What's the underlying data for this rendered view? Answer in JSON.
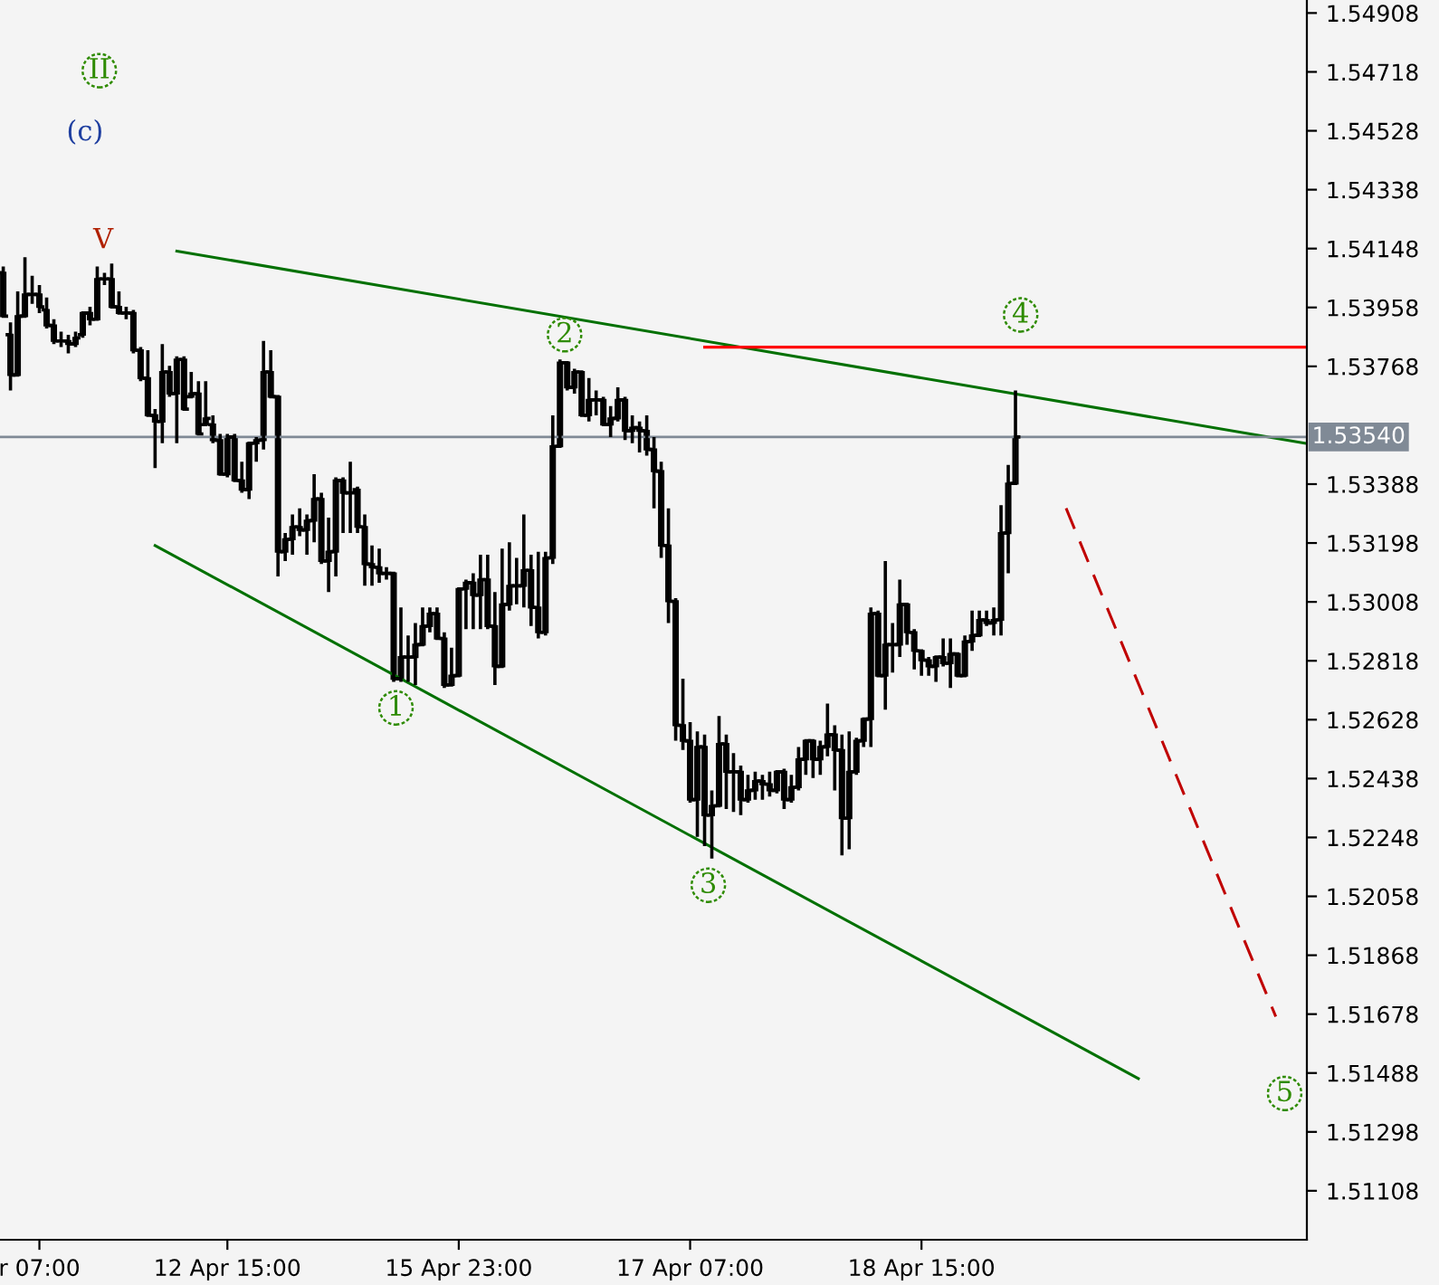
{
  "chart_data": {
    "type": "candlestick",
    "color": "#000000",
    "categories": [
      null,
      null,
      null,
      null,
      null,
      "r 07:00",
      null,
      null,
      null,
      null,
      null,
      null,
      null,
      null,
      null,
      null,
      null,
      null,
      null,
      null,
      null,
      null,
      null,
      null,
      null,
      null,
      null,
      null,
      null,
      null,
      null,
      "12 Apr 15:00",
      null,
      null,
      null,
      null,
      null,
      null,
      null,
      null,
      null,
      null,
      null,
      null,
      null,
      null,
      null,
      null,
      null,
      null,
      null,
      null,
      null,
      null,
      null,
      null,
      null,
      null,
      null,
      null,
      null,
      null,
      null,
      "15 Apr 23:00",
      null,
      null,
      null,
      null,
      null,
      null,
      null,
      null,
      null,
      null,
      null,
      null,
      null,
      null,
      null,
      null,
      null,
      null,
      null,
      null,
      null,
      null,
      null,
      null,
      null,
      null,
      null,
      null,
      null,
      null,
      null,
      "17 Apr 07:00",
      null,
      null,
      null,
      null,
      null,
      null,
      null,
      null,
      null,
      null,
      null,
      null,
      null,
      null,
      null,
      null,
      null,
      null,
      null,
      null,
      null,
      null,
      null,
      null,
      null,
      null,
      null,
      null,
      null,
      null,
      null,
      "18 Apr 15:00",
      null,
      null,
      null,
      null,
      null,
      null,
      null,
      null,
      null,
      null,
      null,
      null,
      null,
      null,
      null,
      null,
      null,
      null,
      null,
      null,
      null,
      null,
      null,
      null,
      null,
      null,
      null,
      null,
      null,
      null,
      null,
      null,
      null,
      null,
      null,
      null,
      null,
      null,
      null,
      null,
      null,
      null,
      null,
      null,
      null,
      null,
      null,
      null,
      null,
      null,
      null,
      null,
      null
    ],
    "ohlc": [
      [
        1.5407,
        1.5409,
        1.5393,
        1.5393
      ],
      [
        1.5387,
        1.5391,
        1.5369,
        1.5374
      ],
      [
        1.5374,
        1.5401,
        1.5374,
        1.5393
      ],
      [
        1.5393,
        1.5412,
        1.5393,
        1.54
      ],
      [
        1.54,
        1.5406,
        1.5397,
        1.54
      ],
      [
        1.54,
        1.5403,
        1.5394,
        1.5396
      ],
      [
        1.5395,
        1.5399,
        1.5389,
        1.539
      ],
      [
        1.539,
        1.5392,
        1.5384,
        1.5385
      ],
      [
        1.5385,
        1.5388,
        1.5383,
        1.5385
      ],
      [
        1.5385,
        1.5387,
        1.5381,
        1.5384
      ],
      [
        1.5384,
        1.5388,
        1.5383,
        1.5386
      ],
      [
        1.5387,
        1.5394,
        1.5386,
        1.5394
      ],
      [
        1.5394,
        1.5396,
        1.539,
        1.5392
      ],
      [
        1.5392,
        1.5409,
        1.5392,
        1.5405
      ],
      [
        1.5405,
        1.5407,
        1.5403,
        1.5405
      ],
      [
        1.5405,
        1.541,
        1.5396,
        1.5396
      ],
      [
        1.5396,
        1.5401,
        1.5394,
        1.5394
      ],
      [
        1.5394,
        1.5396,
        1.5392,
        1.5394
      ],
      [
        1.5394,
        1.5395,
        1.5381,
        1.5382
      ],
      [
        1.5382,
        1.5383,
        1.5372,
        1.5373
      ],
      [
        1.5373,
        1.5382,
        1.5361,
        1.5361
      ],
      [
        1.5361,
        1.5363,
        1.5344,
        1.5359
      ],
      [
        1.5359,
        1.5384,
        1.5352,
        1.5375
      ],
      [
        1.5375,
        1.5377,
        1.5367,
        1.5368
      ],
      [
        1.5368,
        1.538,
        1.5352,
        1.5379
      ],
      [
        1.5379,
        1.538,
        1.5363,
        1.5363
      ],
      [
        1.5367,
        1.5375,
        1.5367,
        1.5368
      ],
      [
        1.5368,
        1.5372,
        1.5355,
        1.5355
      ],
      [
        1.5358,
        1.5372,
        1.5358,
        1.536
      ],
      [
        1.5358,
        1.5361,
        1.5352,
        1.5353
      ],
      [
        1.5353,
        1.5355,
        1.5342,
        1.5342
      ],
      [
        1.5342,
        1.5355,
        1.5341,
        1.5354
      ],
      [
        1.5354,
        1.5355,
        1.534,
        1.534
      ],
      [
        1.534,
        1.5346,
        1.5336,
        1.5337
      ],
      [
        1.5337,
        1.5352,
        1.5334,
        1.5352
      ],
      [
        1.5352,
        1.5354,
        1.5346,
        1.5353
      ],
      [
        1.5353,
        1.5385,
        1.535,
        1.5375
      ],
      [
        1.5375,
        1.5382,
        1.5367,
        1.5367
      ],
      [
        1.5367,
        1.5367,
        1.5309,
        1.5317
      ],
      [
        1.5317,
        1.5323,
        1.5314,
        1.5321
      ],
      [
        1.5321,
        1.5329,
        1.5316,
        1.5325
      ],
      [
        1.5325,
        1.5331,
        1.5322,
        1.5324
      ],
      [
        1.5324,
        1.5329,
        1.5316,
        1.5327
      ],
      [
        1.5327,
        1.5342,
        1.532,
        1.5334
      ],
      [
        1.5334,
        1.5336,
        1.5313,
        1.5314
      ],
      [
        1.5314,
        1.5328,
        1.5304,
        1.5317
      ],
      [
        1.5317,
        1.5341,
        1.5309,
        1.534
      ],
      [
        1.534,
        1.5341,
        1.5323,
        1.5336
      ],
      [
        1.5336,
        1.5346,
        1.5323,
        1.5336
      ],
      [
        1.5337,
        1.5338,
        1.5323,
        1.5325
      ],
      [
        1.5325,
        1.5329,
        1.5306,
        1.5313
      ],
      [
        1.5313,
        1.5319,
        1.5306,
        1.5312
      ],
      [
        1.5312,
        1.5318,
        1.5307,
        1.531
      ],
      [
        1.531,
        1.5312,
        1.5308,
        1.531
      ],
      [
        1.531,
        1.531,
        1.5275,
        1.5276
      ],
      [
        1.5276,
        1.5299,
        1.5275,
        1.5283
      ],
      [
        1.5283,
        1.529,
        1.5275,
        1.5283
      ],
      [
        1.5283,
        1.5294,
        1.5274,
        1.5287
      ],
      [
        1.5287,
        1.5299,
        1.5287,
        1.5293
      ],
      [
        1.5293,
        1.5299,
        1.5291,
        1.5297
      ],
      [
        1.5297,
        1.5299,
        1.5289,
        1.5289
      ],
      [
        1.5289,
        1.5291,
        1.5273,
        1.5274
      ],
      [
        1.5274,
        1.5286,
        1.5274,
        1.5277
      ],
      [
        1.5277,
        1.5305,
        1.5277,
        1.5305
      ],
      [
        1.5305,
        1.5308,
        1.5292,
        1.5307
      ],
      [
        1.5307,
        1.531,
        1.5292,
        1.5303
      ],
      [
        1.5303,
        1.5316,
        1.5292,
        1.5308
      ],
      [
        1.5308,
        1.5316,
        1.5292,
        1.5293
      ],
      [
        1.5293,
        1.5304,
        1.5274,
        1.528
      ],
      [
        1.528,
        1.5318,
        1.528,
        1.53
      ],
      [
        1.53,
        1.532,
        1.5298,
        1.5306
      ],
      [
        1.5306,
        1.5315,
        1.53,
        1.5306
      ],
      [
        1.5306,
        1.5329,
        1.5299,
        1.5311
      ],
      [
        1.5311,
        1.5316,
        1.5293,
        1.5299
      ],
      [
        1.5299,
        1.5317,
        1.5289,
        1.5291
      ],
      [
        1.5291,
        1.5317,
        1.529,
        1.5315
      ],
      [
        1.5315,
        1.5361,
        1.5313,
        1.5351
      ],
      [
        1.5351,
        1.5379,
        1.5351,
        1.5378
      ],
      [
        1.5378,
        1.5378,
        1.5369,
        1.537
      ],
      [
        1.537,
        1.5376,
        1.5368,
        1.5375
      ],
      [
        1.5375,
        1.5375,
        1.5361,
        1.5361
      ],
      [
        1.5361,
        1.5373,
        1.5359,
        1.5366
      ],
      [
        1.5366,
        1.5369,
        1.5361,
        1.5366
      ],
      [
        1.5366,
        1.5367,
        1.5358,
        1.5358
      ],
      [
        1.5358,
        1.5364,
        1.5354,
        1.536
      ],
      [
        1.536,
        1.537,
        1.5359,
        1.5366
      ],
      [
        1.5366,
        1.5367,
        1.5353,
        1.5356
      ],
      [
        1.5356,
        1.5361,
        1.5352,
        1.5357
      ],
      [
        1.5357,
        1.5359,
        1.5349,
        1.5356
      ],
      [
        1.5356,
        1.5361,
        1.5348,
        1.535
      ],
      [
        1.535,
        1.5354,
        1.5331,
        1.5343
      ],
      [
        1.5343,
        1.5346,
        1.5315,
        1.5319
      ],
      [
        1.5319,
        1.5331,
        1.5294,
        1.5301
      ],
      [
        1.5301,
        1.5302,
        1.5256,
        1.5261
      ],
      [
        1.5261,
        1.5276,
        1.5253,
        1.5256
      ],
      [
        1.5256,
        1.5262,
        1.5236,
        1.5237
      ],
      [
        1.5237,
        1.5259,
        1.5225,
        1.5254
      ],
      [
        1.5254,
        1.5258,
        1.5222,
        1.5232
      ],
      [
        1.5232,
        1.524,
        1.5218,
        1.5235
      ],
      [
        1.5235,
        1.5264,
        1.5235,
        1.5255
      ],
      [
        1.5255,
        1.5258,
        1.5234,
        1.5246
      ],
      [
        1.5246,
        1.5252,
        1.5233,
        1.5246
      ],
      [
        1.5246,
        1.5248,
        1.5232,
        1.5237
      ],
      [
        1.5237,
        1.5245,
        1.5236,
        1.524
      ],
      [
        1.524,
        1.5246,
        1.5237,
        1.5243
      ],
      [
        1.5243,
        1.5245,
        1.5237,
        1.5242
      ],
      [
        1.5242,
        1.5246,
        1.5238,
        1.524
      ],
      [
        1.524,
        1.5246,
        1.5239,
        1.5246
      ],
      [
        1.5246,
        1.5247,
        1.5234,
        1.5237
      ],
      [
        1.5237,
        1.5245,
        1.5236,
        1.5241
      ],
      [
        1.5241,
        1.5254,
        1.524,
        1.525
      ],
      [
        1.525,
        1.5256,
        1.5245,
        1.5256
      ],
      [
        1.5256,
        1.5256,
        1.5244,
        1.525
      ],
      [
        1.525,
        1.5256,
        1.5245,
        1.5254
      ],
      [
        1.5254,
        1.5268,
        1.5251,
        1.5258
      ],
      [
        1.5258,
        1.5261,
        1.524,
        1.5253
      ],
      [
        1.5253,
        1.5258,
        1.5219,
        1.5231
      ],
      [
        1.5231,
        1.5259,
        1.5221,
        1.5246
      ],
      [
        1.5246,
        1.5257,
        1.5245,
        1.5256
      ],
      [
        1.5256,
        1.5263,
        1.5254,
        1.5263
      ],
      [
        1.5263,
        1.5299,
        1.5254,
        1.5297
      ],
      [
        1.5297,
        1.5298,
        1.5277,
        1.5277
      ],
      [
        1.5277,
        1.5314,
        1.5266,
        1.5287
      ],
      [
        1.5287,
        1.5294,
        1.5278,
        1.5287
      ],
      [
        1.5287,
        1.5308,
        1.5283,
        1.53
      ],
      [
        1.53,
        1.53,
        1.5287,
        1.5291
      ],
      [
        1.5291,
        1.5292,
        1.5279,
        1.5285
      ],
      [
        1.5285,
        1.5285,
        1.5277,
        1.5282
      ],
      [
        1.5282,
        1.5283,
        1.5277,
        1.528
      ],
      [
        1.528,
        1.5283,
        1.5275,
        1.5283
      ],
      [
        1.5283,
        1.5289,
        1.528,
        1.5281
      ],
      [
        1.5281,
        1.5289,
        1.5273,
        1.5284
      ],
      [
        1.5284,
        1.5284,
        1.5277,
        1.5277
      ],
      [
        1.5277,
        1.529,
        1.5277,
        1.5288
      ],
      [
        1.5288,
        1.5298,
        1.5285,
        1.529
      ],
      [
        1.529,
        1.5298,
        1.529,
        1.5295
      ],
      [
        1.5295,
        1.5298,
        1.5293,
        1.5294
      ],
      [
        1.5294,
        1.5299,
        1.529,
        1.5295
      ],
      [
        1.5295,
        1.5332,
        1.529,
        1.5323
      ],
      [
        1.5323,
        1.5345,
        1.531,
        1.5339
      ],
      [
        1.5339,
        1.5369,
        1.5339,
        1.5354
      ],
      null,
      null,
      null,
      null,
      null,
      null,
      null,
      null,
      null,
      null,
      null,
      null,
      null,
      null,
      null,
      null,
      null,
      null,
      null,
      null,
      null,
      null,
      null,
      null,
      null,
      null,
      null,
      null,
      null,
      null,
      null,
      null,
      null,
      null,
      null,
      null,
      null,
      null,
      null,
      null
    ],
    "series": [
      {
        "type": "line",
        "color": "#007000",
        "values": [
          null,
          null,
          null,
          null,
          null,
          null,
          null,
          null,
          null,
          null,
          null,
          null,
          null,
          null,
          null,
          null,
          null,
          null,
          null,
          null,
          null,
          null,
          null,
          null,
          1.5414,
          null,
          null,
          null,
          null,
          null,
          null,
          null,
          null,
          null,
          null,
          null,
          null,
          null,
          null,
          null,
          null,
          null,
          null,
          null,
          null,
          null,
          null,
          null,
          null,
          null,
          null,
          null,
          null,
          null,
          null,
          null,
          null,
          null,
          null,
          null,
          null,
          null,
          null,
          null,
          null,
          null,
          null,
          null,
          null,
          null,
          null,
          null,
          null,
          null,
          null,
          null,
          null,
          null,
          null,
          null,
          null,
          null,
          null,
          null,
          null,
          null,
          null,
          null,
          null,
          null,
          null,
          null,
          null,
          null,
          null,
          null,
          null,
          null,
          null,
          null,
          null,
          null,
          null,
          null,
          null,
          null,
          null,
          null,
          null,
          null,
          null,
          null,
          null,
          null,
          null,
          null,
          null,
          null,
          null,
          null,
          null,
          null,
          null,
          null,
          null,
          null,
          null,
          null,
          null,
          null,
          null,
          null,
          null,
          null,
          null,
          null,
          null,
          null,
          null,
          null,
          null,
          null,
          null,
          null,
          null,
          null,
          null,
          null,
          null,
          null,
          null,
          null,
          null,
          null,
          null,
          null,
          null,
          null,
          null,
          null,
          null,
          null,
          null,
          null,
          null,
          null,
          null,
          null,
          null,
          null,
          null,
          null,
          null,
          null,
          null,
          null,
          null,
          null,
          null,
          null,
          1.5352
        ]
      },
      {
        "type": "line",
        "color": "#007000",
        "values": [
          null,
          null,
          null,
          null,
          null,
          null,
          null,
          null,
          null,
          null,
          null,
          null,
          null,
          null,
          null,
          null,
          null,
          null,
          null,
          null,
          null,
          1.5319,
          null,
          null,
          null,
          null,
          null,
          null,
          null,
          null,
          null,
          null,
          null,
          null,
          null,
          null,
          null,
          null,
          null,
          null,
          null,
          null,
          null,
          null,
          null,
          null,
          null,
          null,
          null,
          null,
          null,
          null,
          null,
          null,
          null,
          null,
          null,
          null,
          null,
          null,
          null,
          null,
          null,
          null,
          null,
          null,
          null,
          null,
          null,
          null,
          null,
          null,
          null,
          null,
          null,
          null,
          null,
          null,
          null,
          null,
          null,
          null,
          null,
          null,
          null,
          null,
          null,
          null,
          null,
          null,
          null,
          null,
          null,
          null,
          null,
          null,
          null,
          null,
          null,
          null,
          null,
          null,
          null,
          null,
          null,
          null,
          null,
          null,
          null,
          null,
          null,
          null,
          null,
          null,
          null,
          null,
          null,
          null,
          null,
          null,
          null,
          null,
          null,
          null,
          null,
          null,
          null,
          null,
          null,
          null,
          null,
          null,
          null,
          null,
          null,
          null,
          null,
          null,
          null,
          null,
          null,
          null,
          null,
          null,
          null,
          null,
          null,
          null,
          null,
          null,
          null,
          null,
          null,
          null,
          null,
          null,
          null,
          1.5147,
          null,
          null,
          null,
          null,
          null,
          null,
          null,
          null,
          null,
          null,
          null,
          null,
          null,
          null,
          null,
          null,
          null,
          null,
          null,
          null,
          null,
          null,
          null
        ]
      },
      {
        "type": "line",
        "color": "#ff0000",
        "values": [
          null,
          null,
          null,
          null,
          null,
          null,
          null,
          null,
          null,
          null,
          null,
          null,
          null,
          null,
          null,
          null,
          null,
          null,
          null,
          null,
          null,
          null,
          null,
          null,
          null,
          null,
          null,
          null,
          null,
          null,
          null,
          null,
          null,
          null,
          null,
          null,
          null,
          null,
          null,
          null,
          null,
          null,
          null,
          null,
          null,
          null,
          null,
          null,
          null,
          null,
          null,
          null,
          null,
          null,
          null,
          null,
          null,
          null,
          null,
          null,
          null,
          null,
          null,
          null,
          null,
          null,
          null,
          null,
          null,
          null,
          null,
          null,
          null,
          null,
          null,
          null,
          null,
          null,
          null,
          null,
          null,
          null,
          null,
          null,
          null,
          null,
          null,
          null,
          null,
          null,
          null,
          null,
          null,
          null,
          null,
          null,
          null,
          1.5383,
          null,
          null,
          null,
          null,
          null,
          null,
          null,
          null,
          null,
          null,
          null,
          null,
          null,
          null,
          null,
          null,
          null,
          null,
          null,
          null,
          null,
          null,
          null,
          null,
          null,
          null,
          null,
          null,
          null,
          null,
          null,
          null,
          null,
          null,
          null,
          null,
          null,
          null,
          null,
          null,
          null,
          null,
          null,
          null,
          null,
          null,
          null,
          null,
          null,
          null,
          null,
          null,
          null,
          null,
          null,
          null,
          null,
          null,
          null,
          null,
          null,
          null,
          null,
          null,
          null,
          null,
          null,
          null,
          null,
          null,
          null,
          null,
          null,
          null,
          null,
          null,
          null,
          null,
          null,
          null,
          null,
          null,
          1.5383
        ]
      },
      {
        "type": "line",
        "color": "#c00000",
        "line_style": "dashed",
        "values": [
          null,
          null,
          null,
          null,
          null,
          null,
          null,
          null,
          null,
          null,
          null,
          null,
          null,
          null,
          null,
          null,
          null,
          null,
          null,
          null,
          null,
          null,
          null,
          null,
          null,
          null,
          null,
          null,
          null,
          null,
          null,
          null,
          null,
          null,
          null,
          null,
          null,
          null,
          null,
          null,
          null,
          null,
          null,
          null,
          null,
          null,
          null,
          null,
          null,
          null,
          null,
          null,
          null,
          null,
          null,
          null,
          null,
          null,
          null,
          null,
          null,
          null,
          null,
          null,
          null,
          null,
          null,
          null,
          null,
          null,
          null,
          null,
          null,
          null,
          null,
          null,
          null,
          null,
          null,
          null,
          null,
          null,
          null,
          null,
          null,
          null,
          null,
          null,
          null,
          null,
          null,
          null,
          null,
          null,
          null,
          null,
          null,
          null,
          null,
          null,
          null,
          null,
          null,
          null,
          null,
          null,
          null,
          null,
          null,
          null,
          null,
          null,
          null,
          null,
          null,
          null,
          null,
          null,
          null,
          null,
          null,
          null,
          null,
          null,
          null,
          null,
          null,
          null,
          null,
          null,
          null,
          null,
          null,
          null,
          null,
          null,
          null,
          null,
          null,
          null,
          null,
          null,
          null,
          null,
          null,
          null,
          null,
          1.5331,
          null,
          null,
          null,
          null,
          null,
          null,
          null,
          null,
          null,
          null,
          null,
          null,
          null,
          null,
          null,
          null,
          null,
          null,
          null,
          null,
          null,
          null,
          null,
          null,
          null,
          null,
          null,
          null,
          1.5167,
          null,
          null,
          null,
          null
        ]
      }
    ],
    "ref_lines": [
      {
        "axis": "y",
        "value": 1.5354,
        "label": "1.53540",
        "color": "#808a96"
      }
    ],
    "annotations": [
      "II",
      "(c)",
      "V",
      "1",
      "2",
      "3",
      "4",
      "5"
    ],
    "ylim": [
      1.5095,
      1.5495
    ],
    "yticks": [
      1.54908,
      1.54718,
      1.54528,
      1.54338,
      1.54148,
      1.53958,
      1.53768,
      1.53388,
      1.53198,
      1.53008,
      1.52818,
      1.52628,
      1.52438,
      1.52248,
      1.52058,
      1.51868,
      1.51678,
      1.51488,
      1.51298,
      1.51108
    ],
    "grid": false,
    "legend": false
  }
}
